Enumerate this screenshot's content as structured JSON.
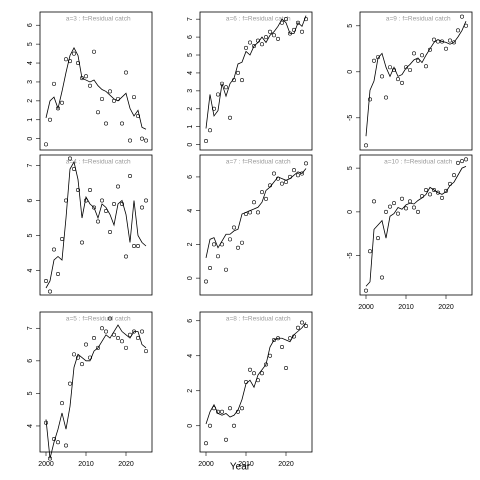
{
  "x_axis_label": "Year",
  "chart_data": [
    {
      "type": "line",
      "title": "a=3  :  f=Residual catch",
      "xlim": [
        1998.5,
        2026.5
      ],
      "ylim": [
        -0.6,
        6.7
      ],
      "yticks": [
        0,
        1,
        2,
        3,
        4,
        5,
        6
      ],
      "x": [
        2000,
        2001,
        2002,
        2003,
        2004,
        2005,
        2006,
        2007,
        2008,
        2009,
        2010,
        2011,
        2012,
        2013,
        2014,
        2015,
        2016,
        2017,
        2018,
        2019,
        2020,
        2021,
        2022,
        2023,
        2024,
        2025
      ],
      "observed": [
        -0.3,
        1.0,
        2.9,
        1.6,
        1.9,
        4.2,
        4.1,
        4.5,
        4.0,
        3.2,
        3.3,
        2.8,
        4.6,
        1.4,
        2.1,
        0.8,
        2.5,
        2.0,
        2.1,
        0.8,
        3.5,
        -0.1,
        2.2,
        1.2,
        0.0,
        -0.1
      ],
      "fitted": [
        1.1,
        2.0,
        2.2,
        1.6,
        2.5,
        3.5,
        4.4,
        4.8,
        4.4,
        3.2,
        3.1,
        3.0,
        3.1,
        2.8,
        2.6,
        2.5,
        2.3,
        2.1,
        2.0,
        2.2,
        2.4,
        1.6,
        1.2,
        1.5,
        0.6,
        0.5
      ]
    },
    {
      "type": "line",
      "title": "a=4  :  f=Residual catch",
      "xlim": [
        1998.5,
        2026.5
      ],
      "ylim": [
        3.3,
        7.3
      ],
      "yticks": [
        4,
        5,
        6,
        7
      ],
      "x": [
        2000,
        2001,
        2002,
        2003,
        2004,
        2005,
        2006,
        2007,
        2008,
        2009,
        2010,
        2011,
        2012,
        2013,
        2014,
        2015,
        2016,
        2017,
        2018,
        2019,
        2020,
        2021,
        2022,
        2023,
        2024,
        2025
      ],
      "observed": [
        3.7,
        3.4,
        4.6,
        3.9,
        4.9,
        6.0,
        7.2,
        6.9,
        6.3,
        4.8,
        6.0,
        6.3,
        5.8,
        5.4,
        6.0,
        5.7,
        5.1,
        5.9,
        6.4,
        5.9,
        4.4,
        6.7,
        4.7,
        4.7,
        5.8,
        6.0
      ],
      "fitted": [
        3.5,
        3.7,
        4.3,
        4.4,
        4.3,
        5.5,
        6.9,
        7.1,
        6.6,
        5.5,
        6.1,
        5.9,
        5.8,
        5.5,
        5.9,
        5.8,
        5.6,
        5.3,
        5.9,
        6.0,
        5.6,
        4.8,
        6.0,
        5.0,
        4.8,
        4.7
      ]
    },
    {
      "type": "line",
      "title": "a=5  :  f=Residual catch",
      "xlim": [
        1998.5,
        2026.5
      ],
      "ylim": [
        3.2,
        7.5
      ],
      "yticks": [
        4,
        5,
        6,
        7
      ],
      "xticks": [
        2000,
        2010,
        2020
      ],
      "x": [
        2000,
        2001,
        2002,
        2003,
        2004,
        2005,
        2006,
        2007,
        2008,
        2009,
        2010,
        2011,
        2012,
        2013,
        2014,
        2015,
        2016,
        2017,
        2018,
        2019,
        2020,
        2021,
        2022,
        2023,
        2024,
        2025
      ],
      "observed": [
        4.1,
        3.0,
        3.6,
        3.5,
        4.7,
        3.4,
        5.3,
        6.2,
        6.1,
        5.9,
        6.5,
        6.1,
        6.7,
        6.4,
        7.0,
        6.9,
        7.3,
        6.8,
        6.7,
        6.6,
        6.4,
        6.8,
        6.9,
        6.7,
        6.9,
        6.3
      ],
      "fitted": [
        4.2,
        3.0,
        3.5,
        3.9,
        4.4,
        3.9,
        4.6,
        5.8,
        6.2,
        6.1,
        6.0,
        6.0,
        6.3,
        6.4,
        6.6,
        6.8,
        6.7,
        6.9,
        7.1,
        6.9,
        6.8,
        6.7,
        6.9,
        6.9,
        6.5,
        6.4
      ]
    },
    {
      "type": "line",
      "title": "a=6  :  f=Residual catch",
      "xlim": [
        1998.5,
        2026.5
      ],
      "ylim": [
        -0.3,
        7.4
      ],
      "yticks": [
        0,
        1,
        2,
        3,
        4,
        5,
        6,
        7
      ],
      "x": [
        2000,
        2001,
        2002,
        2003,
        2004,
        2005,
        2006,
        2007,
        2008,
        2009,
        2010,
        2011,
        2012,
        2013,
        2014,
        2015,
        2016,
        2017,
        2018,
        2019,
        2020,
        2021,
        2022,
        2023,
        2024,
        2025
      ],
      "observed": [
        0.2,
        0.8,
        2.0,
        2.8,
        3.4,
        3.2,
        1.5,
        3.6,
        4.0,
        3.6,
        5.4,
        5.7,
        5.5,
        5.8,
        5.6,
        6.0,
        6.3,
        6.1,
        5.9,
        6.8,
        7.0,
        6.2,
        6.4,
        6.8,
        6.3,
        7.0
      ],
      "fitted": [
        0.9,
        2.8,
        1.6,
        1.9,
        3.4,
        2.7,
        3.4,
        3.7,
        4.5,
        4.6,
        5.2,
        5.0,
        5.5,
        5.7,
        6.0,
        5.7,
        6.1,
        6.3,
        6.6,
        7.0,
        6.8,
        6.2,
        6.2,
        6.8,
        6.6,
        7.2
      ]
    },
    {
      "type": "line",
      "title": "a=7  :  f=Residual catch",
      "xlim": [
        1998.5,
        2026.5
      ],
      "ylim": [
        -1.0,
        7.3
      ],
      "yticks": [
        0,
        2,
        4,
        6
      ],
      "x": [
        2000,
        2001,
        2002,
        2003,
        2004,
        2005,
        2006,
        2007,
        2008,
        2009,
        2010,
        2011,
        2012,
        2013,
        2014,
        2015,
        2016,
        2017,
        2018,
        2019,
        2020,
        2021,
        2022,
        2023,
        2024,
        2025
      ],
      "observed": [
        -0.2,
        0.6,
        2.0,
        1.3,
        2.0,
        0.5,
        2.3,
        3.0,
        1.8,
        2.1,
        3.8,
        3.9,
        4.5,
        3.9,
        5.1,
        4.7,
        5.5,
        6.2,
        5.9,
        5.6,
        5.7,
        6.0,
        6.4,
        6.1,
        6.2,
        6.8
      ],
      "fitted": [
        1.2,
        2.3,
        2.4,
        1.8,
        2.2,
        2.6,
        2.6,
        2.8,
        2.9,
        3.8,
        3.9,
        4.0,
        4.1,
        4.2,
        4.5,
        5.2,
        5.4,
        5.7,
        6.0,
        5.9,
        5.8,
        5.9,
        6.1,
        6.3,
        6.2,
        6.5
      ]
    },
    {
      "type": "line",
      "title": "a=8  :  f=Residual catch",
      "xlim": [
        1998.5,
        2026.5
      ],
      "ylim": [
        -1.5,
        6.5
      ],
      "yticks": [
        0,
        2,
        4,
        6
      ],
      "xticks": [
        2000,
        2010,
        2020
      ],
      "x": [
        2000,
        2001,
        2002,
        2003,
        2004,
        2005,
        2006,
        2007,
        2008,
        2009,
        2010,
        2011,
        2012,
        2013,
        2014,
        2015,
        2016,
        2017,
        2018,
        2019,
        2020,
        2021,
        2022,
        2023,
        2024,
        2025
      ],
      "observed": [
        -1.0,
        0.0,
        1.0,
        0.8,
        0.8,
        -0.8,
        1.0,
        0.0,
        0.8,
        1.0,
        2.5,
        3.2,
        3.0,
        2.6,
        3.0,
        3.5,
        4.0,
        4.9,
        5.0,
        4.5,
        3.3,
        5.0,
        5.1,
        5.6,
        5.9,
        5.7
      ],
      "fitted": [
        0.1,
        0.8,
        1.2,
        0.7,
        0.6,
        0.7,
        0.5,
        0.6,
        0.9,
        1.5,
        2.4,
        2.6,
        2.2,
        2.9,
        3.2,
        3.5,
        4.5,
        4.9,
        5.0,
        5.0,
        4.9,
        4.8,
        5.2,
        5.4,
        5.6,
        5.9
      ]
    },
    {
      "type": "line",
      "title": "a=9  :  f=Residual catch",
      "xlim": [
        1998.5,
        2026.5
      ],
      "ylim": [
        -8.5,
        6.5
      ],
      "yticks": [
        -5,
        0,
        5
      ],
      "x": [
        2000,
        2001,
        2002,
        2003,
        2004,
        2005,
        2006,
        2007,
        2008,
        2009,
        2010,
        2011,
        2012,
        2013,
        2014,
        2015,
        2016,
        2017,
        2018,
        2019,
        2020,
        2021,
        2022,
        2023,
        2024,
        2025
      ],
      "observed": [
        -8.0,
        -3.0,
        1.2,
        1.6,
        -0.5,
        -2.8,
        0.5,
        0.2,
        -0.8,
        -1.2,
        0.5,
        0.2,
        2.0,
        1.2,
        1.8,
        0.6,
        2.4,
        3.5,
        3.3,
        3.3,
        2.5,
        3.4,
        3.2,
        4.5,
        6.0,
        5.0
      ],
      "fitted": [
        -7.0,
        -2.0,
        -1.0,
        1.5,
        2.0,
        0.5,
        -0.5,
        0.5,
        -0.5,
        -0.3,
        0.4,
        0.8,
        1.3,
        1.5,
        1.0,
        1.8,
        2.5,
        3.2,
        3.5,
        3.3,
        3.2,
        3.0,
        3.2,
        3.8,
        4.5,
        5.5
      ]
    },
    {
      "type": "line",
      "title": "a=10  :  f=Residual catch",
      "xlim": [
        1998.5,
        2026.5
      ],
      "ylim": [
        -9.5,
        6.5
      ],
      "yticks": [
        -5,
        0,
        5
      ],
      "xticks": [
        2000,
        2010,
        2020
      ],
      "x": [
        2000,
        2001,
        2002,
        2003,
        2004,
        2005,
        2006,
        2007,
        2008,
        2009,
        2010,
        2011,
        2012,
        2013,
        2014,
        2015,
        2016,
        2017,
        2018,
        2019,
        2020,
        2021,
        2022,
        2023,
        2024,
        2025
      ],
      "observed": [
        -9.0,
        -4.5,
        1.2,
        -3.0,
        -7.5,
        0.0,
        0.6,
        1.0,
        -0.2,
        1.5,
        0.4,
        1.2,
        0.5,
        0.0,
        1.8,
        2.5,
        2.0,
        2.5,
        2.2,
        1.6,
        2.4,
        3.2,
        4.2,
        5.6,
        5.8,
        6.0
      ],
      "fitted": [
        -8.5,
        -8.0,
        -2.0,
        -1.5,
        -1.0,
        -3.0,
        -0.5,
        -0.2,
        0.5,
        0.3,
        0.8,
        1.0,
        0.9,
        1.3,
        1.6,
        2.0,
        2.8,
        2.5,
        2.2,
        2.0,
        2.3,
        3.0,
        3.4,
        4.2,
        5.0,
        5.2
      ]
    }
  ]
}
